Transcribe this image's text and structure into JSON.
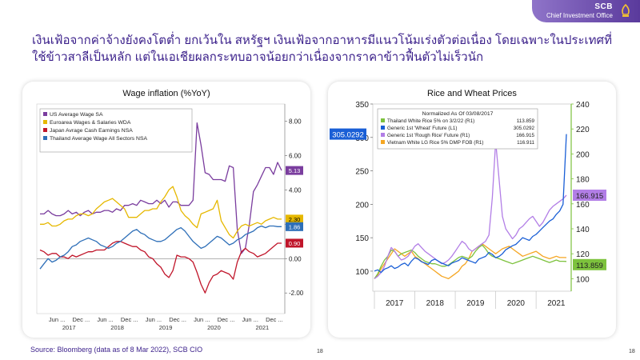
{
  "brand": {
    "name": "SCB",
    "subtitle": "Chief Investment Office",
    "logo_icon": "scb-crest-icon",
    "color": "#5a3a9c"
  },
  "headline": "เงินเฟ้อจากค่าจ้างยังคงโตต่ำ ยกเว้นใน สหรัฐฯ เงินเฟ้อจากอาหารมีแนวโน้มเร่งตัวต่อเนื่อง โดยเฉพาะในประเทศที่ใช้ข้าวสาลีเป็นหลัก แต่ในเอเชียผลกระทบอาจน้อยกว่าเนื่องจากราคาข้าวฟื้นตัวไม่เร็วนัก",
  "source": "Source: Bloomberg (data as of 8 Mar 2022), SCB CIO",
  "page_numbers": [
    "18",
    "18"
  ],
  "chart_data": [
    {
      "type": "line",
      "title": "Wage inflation (%YoY)",
      "ylim": [
        -3.2,
        9.0
      ],
      "yticks": [
        "8.00",
        "6.00",
        "4.00",
        "2.00",
        "0.00",
        "-2.00"
      ],
      "ytick_values": [
        8,
        6,
        4,
        2,
        0,
        -2
      ],
      "xtick_months": [
        "Jun ...",
        "Dec ...",
        "Jun ...",
        "Dec ...",
        "Jun ...",
        "Dec ...",
        "Jun ...",
        "Dec ...",
        "Jun ...",
        "Dec ..."
      ],
      "xtick_years": [
        "2017",
        "2018",
        "2019",
        "2020",
        "2021"
      ],
      "x_start": "2017-01",
      "series": [
        {
          "name": "US Average Wage SA",
          "color": "#7a3d9e",
          "last_label": "5.13",
          "values": [
            2.6,
            2.6,
            2.8,
            2.6,
            2.5,
            2.5,
            2.6,
            2.8,
            2.6,
            2.7,
            2.5,
            2.7,
            2.8,
            2.6,
            2.7,
            2.7,
            2.8,
            2.8,
            2.7,
            2.9,
            2.8,
            3.1,
            3.1,
            3.2,
            3.1,
            3.4,
            3.3,
            3.2,
            3.2,
            3.4,
            3.2,
            3.4,
            3.0,
            3.3,
            3.3,
            3.1,
            3.1,
            3.1,
            3.4,
            7.9,
            6.6,
            5.0,
            4.9,
            4.6,
            4.6,
            4.6,
            4.5,
            5.4,
            5.3,
            1.7,
            0.3,
            0.6,
            2.0,
            3.9,
            4.3,
            4.8,
            5.3,
            5.3,
            4.9,
            5.6,
            5.13
          ]
        },
        {
          "name": "Euroarea Wages & Salaries WDA",
          "color": "#e6b800",
          "last_label": "2.30",
          "values": [
            2.0,
            2.0,
            2.1,
            1.9,
            1.9,
            2.0,
            2.2,
            2.3,
            2.3,
            2.5,
            2.6,
            2.6,
            2.5,
            2.6,
            2.9,
            3.1,
            3.3,
            3.4,
            3.5,
            3.3,
            3.1,
            2.9,
            2.4,
            2.4,
            2.4,
            2.6,
            2.8,
            2.8,
            2.9,
            2.9,
            3.3,
            3.6,
            4.0,
            4.2,
            3.6,
            2.8,
            2.5,
            2.3,
            2.0,
            1.8,
            2.6,
            2.7,
            2.8,
            2.9,
            3.4,
            2.2,
            1.8,
            1.4,
            1.2,
            1.6,
            1.9,
            2.0,
            1.9,
            2.0,
            2.1,
            2.0,
            2.2,
            2.3,
            2.4,
            2.3,
            2.3
          ]
        },
        {
          "name": "Japan Avrage Cash Earnings NSA",
          "color": "#c0152a",
          "last_label": "0.90",
          "values": [
            0.5,
            0.4,
            0.2,
            0.3,
            0.3,
            0.1,
            0.1,
            0.0,
            0.2,
            0.1,
            0.2,
            0.3,
            0.4,
            0.4,
            0.5,
            0.5,
            0.5,
            0.7,
            0.9,
            1.0,
            1.0,
            0.9,
            0.8,
            0.7,
            0.7,
            0.5,
            0.4,
            0.1,
            0.0,
            -0.3,
            -0.5,
            -0.9,
            -1.1,
            -0.7,
            0.2,
            0.1,
            0.1,
            0.0,
            -0.2,
            -0.8,
            -1.5,
            -2.0,
            -1.4,
            -1.0,
            -0.9,
            -0.7,
            -0.8,
            -0.9,
            -1.2,
            -0.2,
            0.4,
            0.6,
            0.4,
            0.3,
            0.1,
            0.2,
            0.3,
            0.5,
            0.7,
            0.9,
            0.9
          ]
        },
        {
          "name": "Thailand Average Wage All Sectors NSA",
          "color": "#2e6fb8",
          "last_label": "1.86",
          "values": [
            -0.6,
            -0.3,
            0.0,
            -0.2,
            -0.1,
            0.1,
            0.2,
            0.4,
            0.7,
            0.8,
            1.0,
            1.1,
            1.2,
            1.1,
            1.0,
            0.8,
            0.7,
            0.6,
            0.7,
            0.9,
            1.0,
            1.2,
            1.4,
            1.6,
            1.7,
            1.5,
            1.4,
            1.2,
            1.1,
            1.0,
            1.0,
            1.1,
            1.3,
            1.5,
            1.7,
            1.8,
            1.6,
            1.3,
            1.0,
            0.8,
            0.6,
            0.7,
            0.9,
            1.1,
            1.3,
            1.2,
            1.0,
            0.8,
            0.9,
            1.1,
            1.2,
            1.4,
            1.5,
            1.6,
            1.8,
            1.9,
            1.8,
            1.9,
            1.9,
            1.86,
            1.86
          ]
        }
      ]
    },
    {
      "type": "line",
      "title": "Rice and Wheat Prices",
      "legend_header": "Normalized As Of 03/08/2017",
      "left_yticks": [
        "350",
        "300",
        "250",
        "200",
        "150",
        "100"
      ],
      "left_ytick_values": [
        350,
        300,
        250,
        200,
        150,
        100
      ],
      "right_yticks": [
        "240",
        "220",
        "200",
        "180",
        "160",
        "140",
        "120",
        "100"
      ],
      "right_ytick_values": [
        240,
        220,
        200,
        180,
        160,
        140,
        120,
        100
      ],
      "xtick_years": [
        "2017",
        "2018",
        "2019",
        "2020",
        "2021"
      ],
      "x_start": "2017-01",
      "wheat_callout": "305.0292",
      "series": [
        {
          "name": "Thailand White Rice 5% on 3/2/22 (R1)",
          "value_label": "113.859",
          "color": "#7dc23d",
          "axis": "right",
          "callout": "113.859",
          "values": [
            100,
            104,
            110,
            115,
            118,
            123,
            122,
            118,
            120,
            121,
            122,
            123,
            121,
            118,
            116,
            114,
            113,
            112,
            112,
            111,
            110,
            110,
            111,
            113,
            115,
            117,
            118,
            117,
            116,
            118,
            122,
            125,
            127,
            124,
            120,
            118,
            117,
            116,
            115,
            114,
            113,
            112,
            113,
            114,
            115,
            116,
            117,
            118,
            117,
            116,
            115,
            114,
            113,
            114,
            115,
            114,
            114,
            113.859
          ]
        },
        {
          "name": "Generic 1st 'Wheat' Future (L1)",
          "value_label": "305.0292",
          "color": "#1a5fd6",
          "axis": "left",
          "values": [
            100,
            102,
            98,
            103,
            105,
            108,
            104,
            106,
            110,
            112,
            108,
            115,
            120,
            118,
            114,
            112,
            110,
            116,
            118,
            115,
            112,
            110,
            108,
            112,
            114,
            116,
            120,
            118,
            116,
            114,
            112,
            118,
            120,
            122,
            128,
            125,
            120,
            122,
            126,
            132,
            135,
            138,
            140,
            145,
            150,
            148,
            146,
            152,
            155,
            160,
            165,
            170,
            175,
            178,
            185,
            190,
            200,
            305.0292
          ]
        },
        {
          "name": "Generic 1st 'Rough Rice' Future (R1)",
          "value_label": "166.915",
          "color": "#b27ee6",
          "axis": "right",
          "values": [
            100,
            102,
            105,
            110,
            118,
            125,
            122,
            118,
            115,
            116,
            118,
            122,
            126,
            128,
            125,
            122,
            120,
            118,
            116,
            114,
            112,
            113,
            115,
            118,
            122,
            126,
            130,
            128,
            124,
            122,
            124,
            126,
            128,
            130,
            135,
            165,
            210,
            180,
            150,
            140,
            136,
            132,
            135,
            140,
            142,
            145,
            148,
            150,
            146,
            142,
            145,
            150,
            155,
            158,
            160,
            162,
            164,
            166.915
          ]
        },
        {
          "name": "Vietnam White LG Rice 5% DMP FOB (R1)",
          "value_label": "116.911",
          "color": "#f5a623",
          "axis": "right",
          "values": [
            100,
            103,
            108,
            112,
            116,
            120,
            124,
            122,
            120,
            118,
            120,
            122,
            118,
            116,
            114,
            112,
            110,
            108,
            106,
            104,
            102,
            101,
            100,
            102,
            104,
            106,
            110,
            112,
            116,
            122,
            124,
            126,
            128,
            126,
            124,
            122,
            120,
            122,
            124,
            125,
            126,
            124,
            122,
            120,
            118,
            119,
            120,
            121,
            122,
            120,
            118,
            117,
            116,
            117,
            118,
            117,
            117,
            116.911
          ]
        }
      ]
    }
  ]
}
